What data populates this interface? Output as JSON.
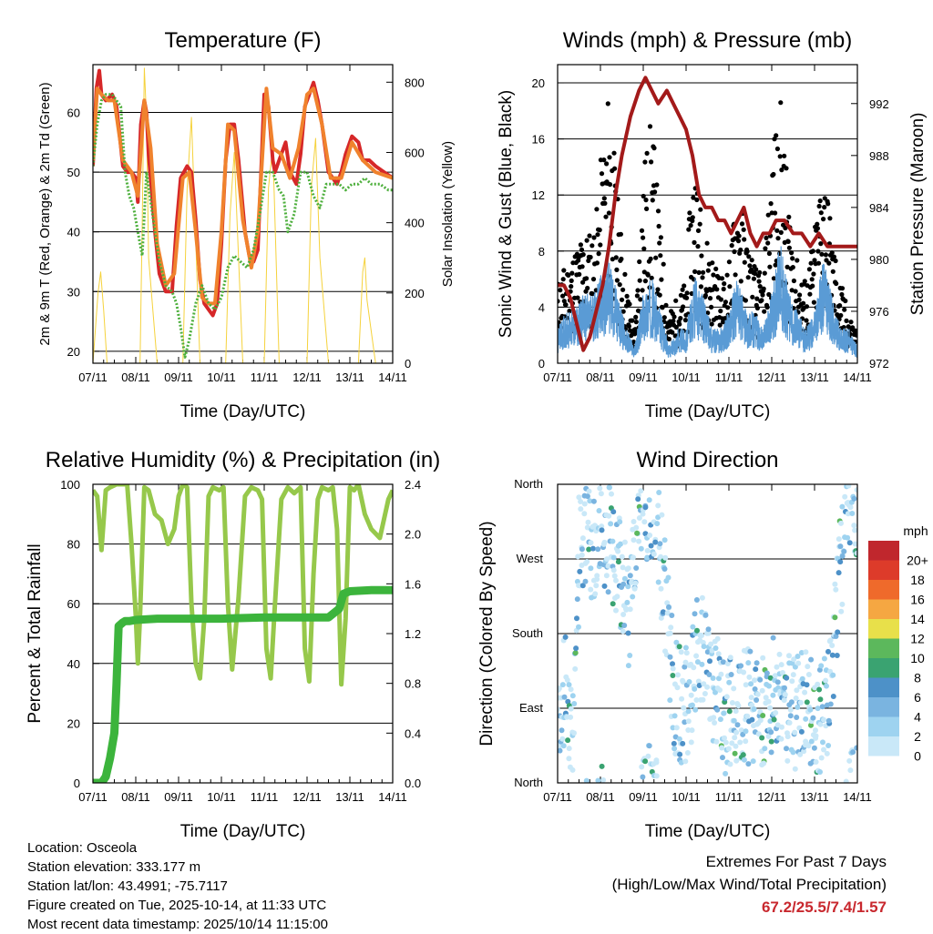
{
  "colors": {
    "red": "#d62728",
    "orange": "#f0822d",
    "green_td": "#4daf3c",
    "yellow": "#f5d23c",
    "black": "#000000",
    "blue": "#5a9bd5",
    "maroon": "#a31a1a",
    "rh": "#96c84b",
    "rain": "#3cb43c",
    "speed_scale": [
      "#c9e8f8",
      "#9ed3f0",
      "#7ab4e0",
      "#4d91c8",
      "#3aa371",
      "#5cb85c",
      "#e8e04a",
      "#f5a742",
      "#ef6a2b",
      "#dd3b2a",
      "#c0272d",
      "#8e1c1c"
    ]
  },
  "footer": {
    "location": "Location: Osceola",
    "elevation": "Station elevation: 333.177 m",
    "latlon": "Station lat/lon: 43.4991; -75.7117",
    "created": "Figure created on Tue, 2025-10-14, at 11:33 UTC",
    "recent": "Most recent data timestamp: 2025/10/14 11:15:00"
  },
  "extremes": {
    "title": "Extremes For Past 7 Days",
    "subtitle": "(High/Low/Max Wind/Total Precipitation)",
    "values": "67.2/25.5/7.4/1.57"
  },
  "chart_data": [
    {
      "type": "line",
      "title": "Temperature (F)",
      "xlabel": "Time (Day/UTC)",
      "ylabel": "2m & 9m T (Red, Orange) & 2m Td (Green)",
      "y2label": "Solar Insolation (Yellow)",
      "xticks": [
        "07/11",
        "08/11",
        "09/11",
        "10/11",
        "11/11",
        "12/11",
        "13/11",
        "14/11"
      ],
      "xlim": [
        0,
        7
      ],
      "ylim": [
        18,
        68
      ],
      "yticks": [
        20,
        30,
        40,
        50,
        60
      ],
      "y2lim": [
        0,
        850
      ],
      "y2ticks": [
        0,
        200,
        400,
        600,
        800
      ],
      "series": [
        {
          "name": "2m T",
          "color": "#d62728",
          "x": [
            0,
            0.08,
            0.15,
            0.2,
            0.3,
            0.45,
            0.55,
            0.7,
            0.8,
            0.9,
            1.0,
            1.05,
            1.12,
            1.2,
            1.25,
            1.3,
            1.45,
            1.55,
            1.7,
            1.85,
            1.95,
            2.05,
            2.2,
            2.3,
            2.4,
            2.5,
            2.6,
            2.7,
            2.8,
            2.9,
            3.0,
            3.1,
            3.2,
            3.3,
            3.4,
            3.55,
            3.65,
            3.75,
            3.85,
            3.95,
            4.0,
            4.1,
            4.2,
            4.25,
            4.35,
            4.5,
            4.6,
            4.75,
            4.85,
            4.95,
            5.05,
            5.15,
            5.25,
            5.35,
            5.5,
            5.6,
            5.7,
            5.8,
            5.9,
            6.05,
            6.2,
            6.3,
            6.45,
            6.6,
            6.8,
            7.0
          ],
          "values": [
            51,
            64,
            67,
            63,
            62,
            63,
            61,
            51,
            50,
            50,
            49,
            45,
            58,
            62,
            60,
            53,
            40,
            33,
            30,
            30,
            41,
            49,
            51,
            50,
            42,
            32,
            28,
            27,
            26,
            28,
            38,
            52,
            58,
            58,
            52,
            40,
            36,
            35,
            37,
            54,
            63,
            61,
            52,
            50,
            52,
            55,
            50,
            48,
            53,
            61,
            63,
            65,
            62,
            58,
            50,
            49,
            48,
            50,
            53,
            56,
            55,
            52,
            52,
            51,
            50,
            49
          ]
        },
        {
          "name": "9m T",
          "color": "#f0822d",
          "x": [
            0,
            0.1,
            0.2,
            0.35,
            0.5,
            0.7,
            0.9,
            1.05,
            1.2,
            1.35,
            1.5,
            1.7,
            1.9,
            2.1,
            2.25,
            2.4,
            2.55,
            2.7,
            2.85,
            3.0,
            3.15,
            3.3,
            3.5,
            3.7,
            3.85,
            4.05,
            4.2,
            4.4,
            4.6,
            4.8,
            5.0,
            5.15,
            5.35,
            5.55,
            5.8,
            6.05,
            6.3,
            6.6,
            7.0
          ],
          "values": [
            52,
            64,
            63,
            62,
            62,
            52,
            50,
            46,
            62,
            54,
            38,
            31,
            33,
            49,
            50,
            40,
            29,
            28,
            28,
            40,
            58,
            57,
            42,
            34,
            40,
            64,
            54,
            53,
            49,
            54,
            63,
            64,
            58,
            49,
            49,
            55,
            52,
            50,
            49
          ]
        },
        {
          "name": "2m Td",
          "color": "#4daf3c",
          "x": [
            0,
            0.1,
            0.2,
            0.3,
            0.45,
            0.55,
            0.65,
            0.75,
            0.85,
            0.95,
            1.05,
            1.15,
            1.25,
            1.35,
            1.45,
            1.55,
            1.7,
            1.85,
            1.95,
            2.05,
            2.15,
            2.25,
            2.4,
            2.55,
            2.7,
            2.85,
            3.0,
            3.15,
            3.3,
            3.45,
            3.6,
            3.75,
            3.9,
            4.05,
            4.2,
            4.35,
            4.45,
            4.55,
            4.7,
            4.85,
            5.0,
            5.15,
            5.3,
            5.45,
            5.6,
            5.75,
            5.9,
            6.05,
            6.2,
            6.35,
            6.5,
            6.7,
            6.9,
            7.0
          ],
          "values": [
            51,
            58,
            62,
            63,
            63,
            62,
            61,
            50,
            46,
            44,
            40,
            36,
            50,
            45,
            40,
            35,
            31,
            30,
            28,
            24,
            19,
            22,
            28,
            31,
            28,
            27,
            29,
            34,
            36,
            35,
            34,
            37,
            43,
            50,
            50,
            47,
            46,
            40,
            43,
            50,
            50,
            46,
            44,
            48,
            48,
            48,
            47,
            48,
            48,
            49,
            48,
            48,
            47,
            47
          ]
        },
        {
          "name": "Solar Insolation",
          "color": "#f5d23c",
          "axis": "y2",
          "x": [
            0,
            0.12,
            0.18,
            0.25,
            0.33,
            0.5,
            1.1,
            1.15,
            1.2,
            1.25,
            1.3,
            1.5,
            2.1,
            2.2,
            2.3,
            2.5,
            2.8,
            3.1,
            3.2,
            3.3,
            3.5,
            4.0,
            4.1,
            4.2,
            4.35,
            4.6,
            5.0,
            5.1,
            5.2,
            5.3,
            5.5,
            6.2,
            6.3,
            6.35,
            6.4,
            6.6,
            7.0
          ],
          "values": [
            0,
            200,
            260,
            150,
            0,
            0,
            0,
            400,
            840,
            700,
            300,
            0,
            0,
            500,
            700,
            0,
            0,
            0,
            420,
            600,
            0,
            0,
            500,
            620,
            0,
            0,
            0,
            500,
            640,
            300,
            0,
            0,
            260,
            300,
            180,
            0,
            0
          ]
        }
      ]
    },
    {
      "type": "scatter",
      "title": "Winds (mph) & Pressure (mb)",
      "xlabel": "Time (Day/UTC)",
      "ylabel": "Sonic Wind & Gust (Blue, Black)",
      "y2label": "Station Pressure (Maroon)",
      "xticks": [
        "07/11",
        "08/11",
        "09/11",
        "10/11",
        "11/11",
        "12/11",
        "13/11",
        "14/11"
      ],
      "xlim": [
        0,
        7
      ],
      "ylim": [
        0,
        21.3
      ],
      "yticks": [
        0,
        4,
        8,
        12,
        16,
        20
      ],
      "y2lim": [
        972,
        995
      ],
      "y2ticks": [
        972,
        976,
        980,
        984,
        988,
        992
      ],
      "series": [
        {
          "name": "Gust",
          "color": "#000000",
          "x": [
            0,
            0.2,
            0.4,
            0.6,
            0.8,
            0.9,
            1.0,
            1.1,
            1.2,
            1.4,
            1.6,
            1.8,
            2.0,
            2.2,
            2.4,
            2.6,
            2.8,
            3.0,
            3.1,
            3.2,
            3.4,
            3.6,
            3.8,
            4.0,
            4.2,
            4.4,
            4.6,
            4.8,
            5.0,
            5.2,
            5.4,
            5.6,
            5.8,
            6.0,
            6.2,
            6.4,
            6.6,
            6.8,
            7.0
          ],
          "values": [
            5,
            6,
            7,
            8,
            8,
            9,
            12,
            14,
            17,
            10,
            5,
            2,
            12,
            15,
            8,
            3,
            4,
            5,
            10,
            13,
            8,
            7,
            5,
            6,
            11,
            8,
            6,
            5,
            13,
            16,
            10,
            6,
            5,
            8,
            13,
            8,
            5,
            3,
            2
          ]
        },
        {
          "name": "Wind",
          "color": "#5a9bd5",
          "x": [
            0,
            0.2,
            0.4,
            0.6,
            0.8,
            1.0,
            1.2,
            1.4,
            1.6,
            1.8,
            2.0,
            2.2,
            2.4,
            2.6,
            2.8,
            3.0,
            3.2,
            3.4,
            3.6,
            3.8,
            4.0,
            4.2,
            4.4,
            4.6,
            4.8,
            5.0,
            5.2,
            5.4,
            5.6,
            5.8,
            6.0,
            6.2,
            6.4,
            6.6,
            6.8,
            7.0
          ],
          "values": [
            2,
            3,
            3,
            4,
            4,
            5,
            6,
            4,
            2,
            1,
            4,
            5,
            3,
            1,
            2,
            2,
            5,
            4,
            2,
            2,
            3,
            5,
            3,
            3,
            2,
            4,
            7,
            4,
            3,
            2,
            3,
            6,
            4,
            2,
            2,
            1
          ]
        },
        {
          "name": "Pressure",
          "color": "#a31a1a",
          "axis": "y2",
          "x": [
            0,
            0.15,
            0.3,
            0.45,
            0.6,
            0.75,
            0.9,
            1.05,
            1.2,
            1.35,
            1.5,
            1.7,
            1.9,
            2.05,
            2.2,
            2.35,
            2.55,
            2.7,
            2.85,
            3.0,
            3.15,
            3.3,
            3.45,
            3.6,
            3.75,
            3.9,
            4.05,
            4.2,
            4.35,
            4.5,
            4.65,
            4.8,
            4.95,
            5.1,
            5.3,
            5.5,
            5.7,
            5.9,
            6.1,
            6.3,
            6.5,
            6.7,
            6.85,
            7.0
          ],
          "values": [
            978,
            978,
            977,
            975,
            973,
            974,
            976,
            978,
            981,
            985,
            988,
            991,
            993,
            994,
            993,
            992,
            993,
            992,
            991,
            990,
            988,
            985,
            984,
            984,
            983,
            983,
            982,
            983,
            984,
            982,
            981,
            982,
            982,
            983,
            983,
            982,
            982,
            981,
            982,
            981,
            981,
            981,
            981,
            981
          ]
        }
      ]
    },
    {
      "type": "line",
      "title": "Relative Humidity (%) & Precipitation (in)",
      "xlabel": "Time (Day/UTC)",
      "ylabel": "Percent & Total Rainfall",
      "xticks": [
        "07/11",
        "08/11",
        "09/11",
        "10/11",
        "11/11",
        "12/11",
        "13/11",
        "14/11"
      ],
      "xlim": [
        0,
        7
      ],
      "ylim": [
        0,
        100
      ],
      "yticks": [
        0,
        20,
        40,
        60,
        80,
        100
      ],
      "y2lim": [
        0,
        2.4
      ],
      "y2ticks": [
        "0.0",
        "0.4",
        "0.8",
        "1.2",
        "1.6",
        "2.0",
        "2.4"
      ],
      "series": [
        {
          "name": "Relative Humidity",
          "color": "#96c84b",
          "x": [
            0,
            0.1,
            0.2,
            0.3,
            0.4,
            0.55,
            0.7,
            0.8,
            0.9,
            1.0,
            1.05,
            1.1,
            1.2,
            1.3,
            1.45,
            1.6,
            1.75,
            1.9,
            2.0,
            2.1,
            2.2,
            2.3,
            2.4,
            2.5,
            2.6,
            2.7,
            2.8,
            2.95,
            3.05,
            3.15,
            3.25,
            3.4,
            3.55,
            3.7,
            3.85,
            3.95,
            4.05,
            4.15,
            4.25,
            4.4,
            4.55,
            4.7,
            4.85,
            4.95,
            5.05,
            5.15,
            5.25,
            5.35,
            5.5,
            5.6,
            5.7,
            5.8,
            5.9,
            6.0,
            6.1,
            6.2,
            6.35,
            6.5,
            6.7,
            6.9,
            7.0
          ],
          "values": [
            98,
            96,
            78,
            98,
            99,
            100,
            100,
            100,
            80,
            56,
            40,
            56,
            99,
            98,
            90,
            88,
            80,
            85,
            96,
            100,
            99,
            60,
            40,
            35,
            55,
            96,
            99,
            98,
            99,
            60,
            38,
            62,
            96,
            99,
            98,
            95,
            45,
            35,
            60,
            95,
            99,
            97,
            99,
            45,
            34,
            70,
            95,
            99,
            98,
            99,
            85,
            33,
            55,
            99,
            98,
            100,
            90,
            85,
            82,
            95,
            98
          ]
        },
        {
          "name": "Total Rainfall",
          "color": "#3cb43c",
          "axis": "y2",
          "x": [
            0,
            0.2,
            0.3,
            0.4,
            0.5,
            0.55,
            0.6,
            0.7,
            0.75,
            0.85,
            1.0,
            1.5,
            2.0,
            3.0,
            4.0,
            5.0,
            5.5,
            5.75,
            5.85,
            6.0,
            6.5,
            7.0
          ],
          "values": [
            0,
            0,
            0.05,
            0.2,
            0.4,
            0.8,
            1.26,
            1.29,
            1.3,
            1.3,
            1.31,
            1.32,
            1.32,
            1.32,
            1.33,
            1.33,
            1.33,
            1.4,
            1.52,
            1.54,
            1.55,
            1.55
          ]
        }
      ]
    },
    {
      "type": "scatter",
      "title": "Wind Direction",
      "xlabel": "Time (Day/UTC)",
      "ylabel": "Direction (Colored By Speed)",
      "xticks": [
        "07/11",
        "08/11",
        "09/11",
        "10/11",
        "11/11",
        "12/11",
        "13/11",
        "14/11"
      ],
      "xlim": [
        0,
        7
      ],
      "ylim": [
        0,
        360
      ],
      "yticks": [
        "North",
        "East",
        "South",
        "West",
        "North"
      ],
      "legend_title": "mph",
      "legend_labels": [
        "0",
        "2",
        "4",
        "6",
        "8",
        "10",
        "12",
        "14",
        "16",
        "18",
        "20+"
      ],
      "series": [
        {
          "name": "Direction",
          "x": [
            0.05,
            0.2,
            0.35,
            0.5,
            0.7,
            0.85,
            1.0,
            1.15,
            1.3,
            1.5,
            1.7,
            1.9,
            2.1,
            2.3,
            2.5,
            2.7,
            2.9,
            3.1,
            3.3,
            3.5,
            3.7,
            3.9,
            4.1,
            4.3,
            4.5,
            4.7,
            4.9,
            5.1,
            5.3,
            5.5,
            5.7,
            5.9,
            6.1,
            6.3,
            6.5,
            6.7,
            6.9
          ],
          "values": [
            90,
            120,
            60,
            280,
            300,
            290,
            320,
            300,
            280,
            240,
            200,
            330,
            340,
            320,
            230,
            110,
            90,
            100,
            170,
            130,
            110,
            80,
            90,
            100,
            90,
            80,
            100,
            110,
            100,
            80,
            100,
            90,
            80,
            100,
            200,
            320,
            340
          ]
        }
      ]
    }
  ]
}
